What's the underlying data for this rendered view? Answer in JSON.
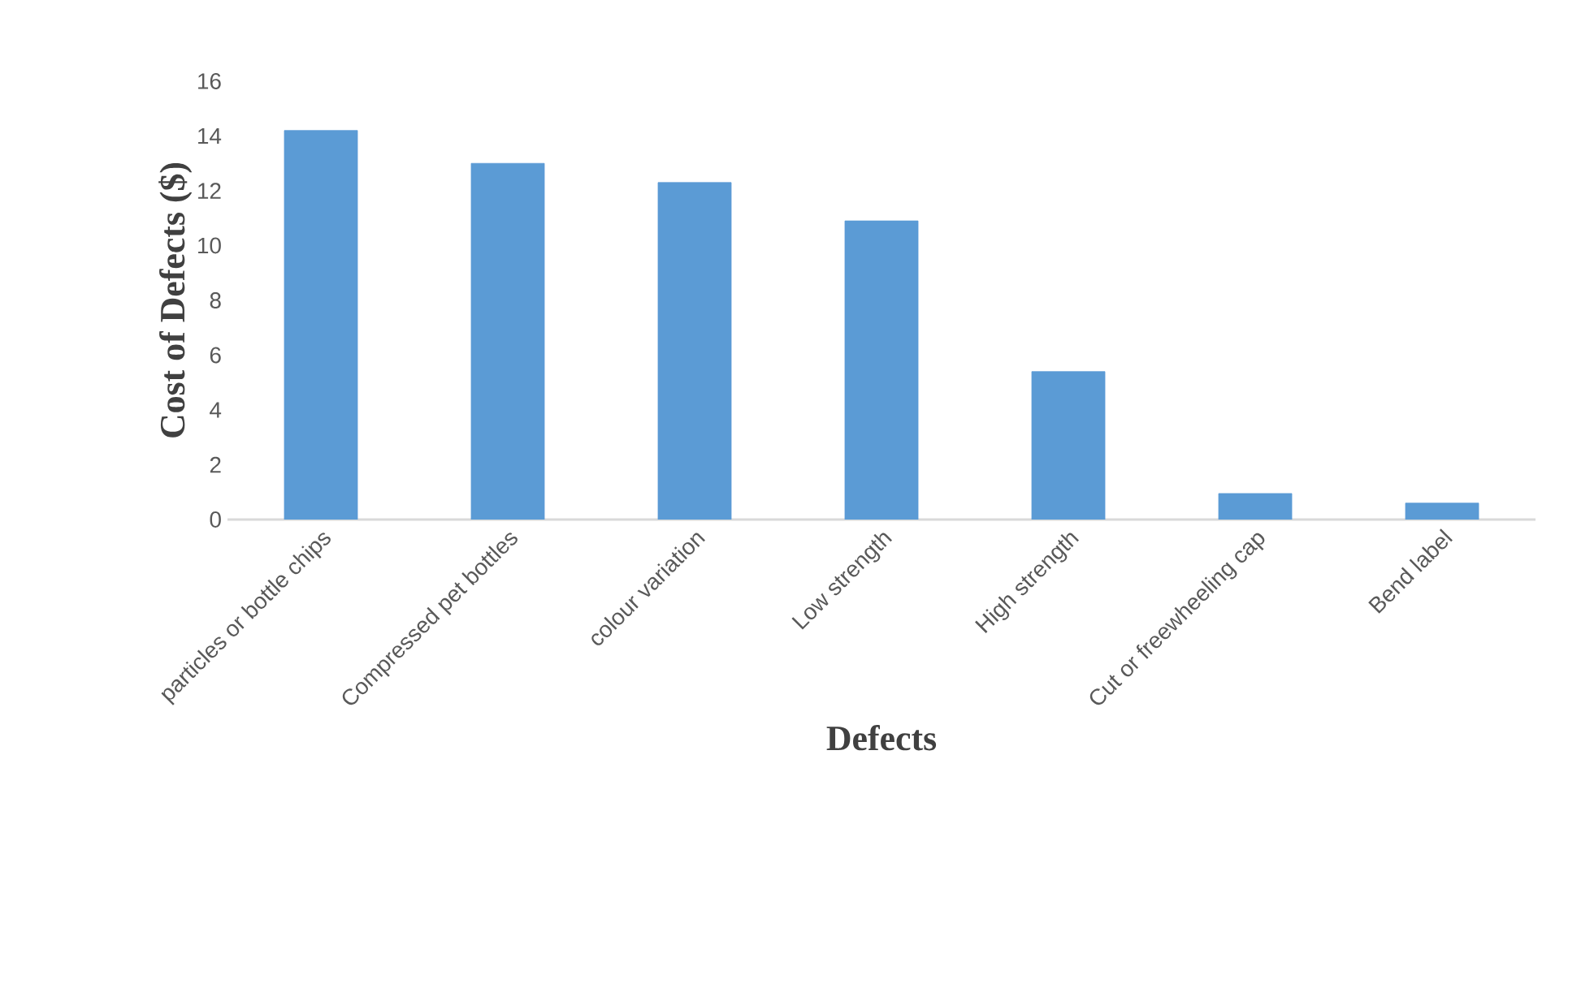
{
  "chart_data": {
    "type": "bar",
    "xlabel": "Defects",
    "ylabel": "Cost of Defects ($)",
    "categories": [
      "particles or bottle chips",
      "Compressed pet bottles",
      "colour variation",
      "Low strength",
      "High strength",
      "Cut or freewheeling cap",
      "Bend label"
    ],
    "values": [
      14.2,
      13.0,
      12.3,
      10.9,
      5.4,
      0.95,
      0.6
    ],
    "color": "#5b9bd5",
    "ylim": [
      0,
      16
    ],
    "yticks": [
      0,
      2,
      4,
      6,
      8,
      10,
      12,
      14,
      16
    ]
  }
}
